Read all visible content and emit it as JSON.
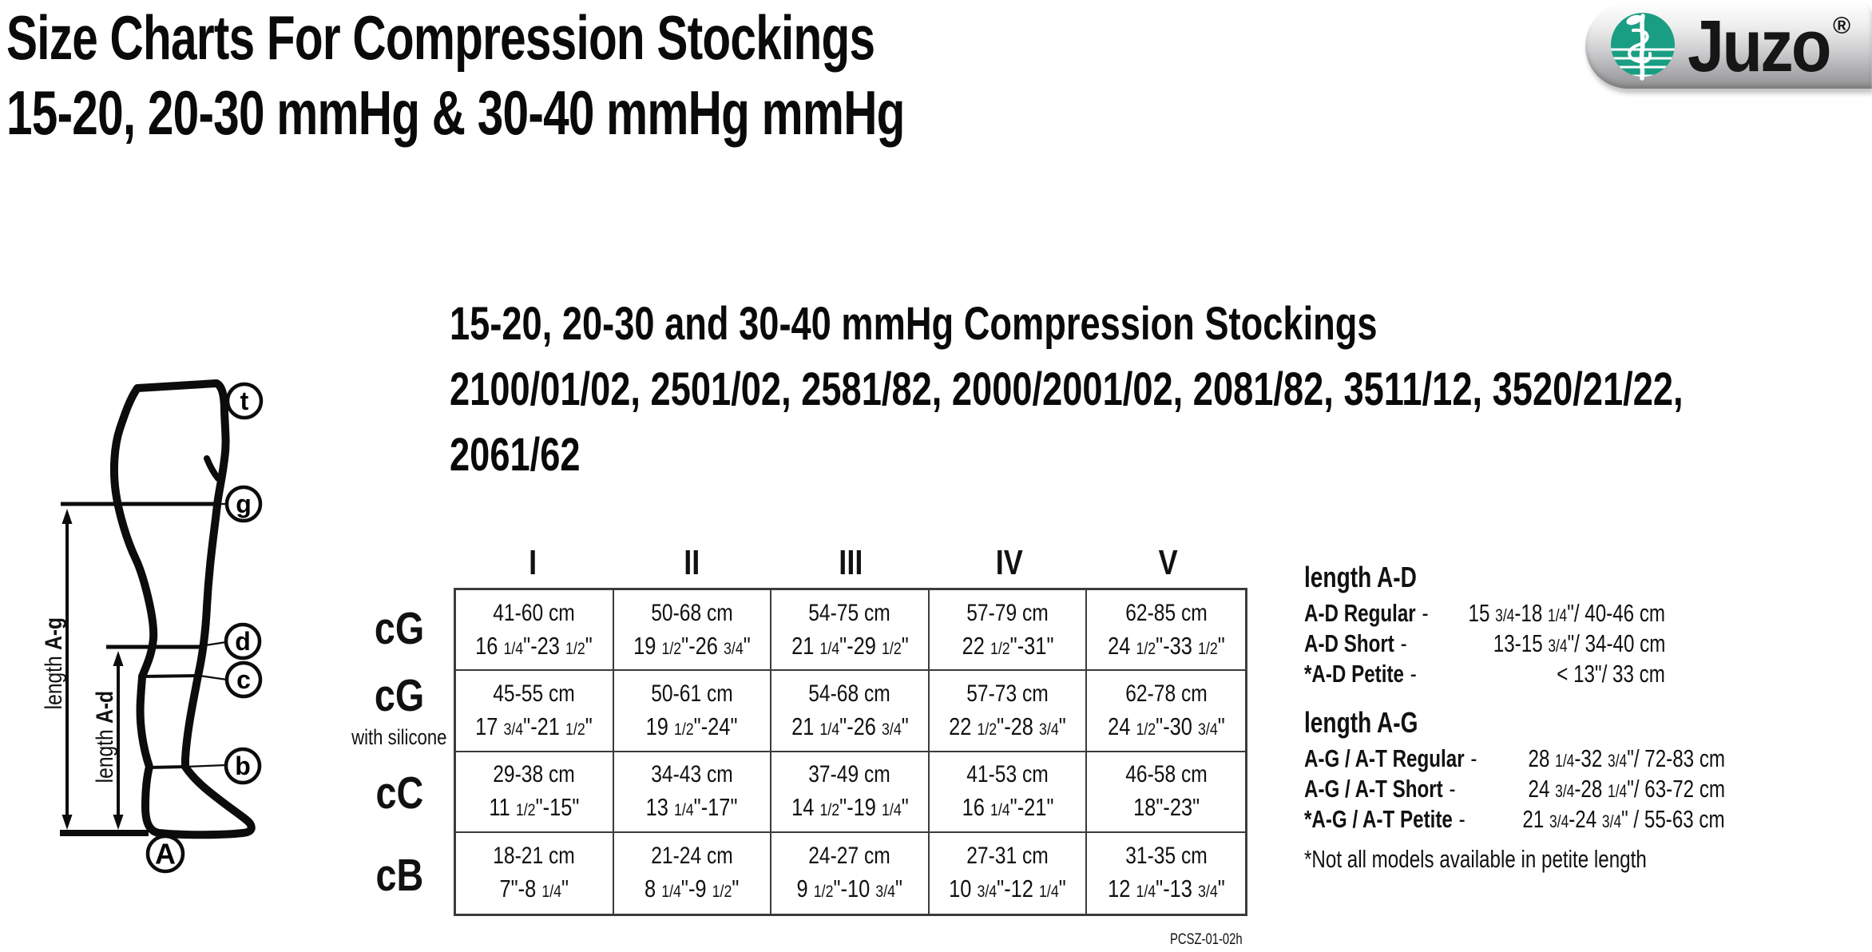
{
  "page": {
    "title_line1": "Size Charts For Compression Stockings",
    "title_line2": "15-20, 20-30 mmHg & 30-40 mmHg mmHg",
    "doc_code": "PCSZ-01-02h"
  },
  "logo": {
    "brand": "Juzo",
    "registered": "®",
    "icon": "rod-of-asclepius-icon",
    "green": "#1A9E83"
  },
  "diagram": {
    "point_labels": [
      "t",
      "g",
      "d",
      "c",
      "b",
      "A"
    ],
    "length_ag_prefix": "length",
    "length_ag_bold": "A-g",
    "length_ad_prefix": "length",
    "length_ad_bold": "A-d"
  },
  "section": {
    "heading": "15-20, 20-30 and 30-40 mmHg Compression Stockings",
    "models_line1": "2100/01/02, 2501/02, 2581/82, 2000/2001/02, 2081/82, 3511/12, 3520/21/22,",
    "models_line2": "2061/62"
  },
  "size_table": {
    "columns": [
      "I",
      "II",
      "III",
      "IV",
      "V"
    ],
    "rows": [
      {
        "label": "cG",
        "sublabel": "",
        "cells": [
          {
            "cm": "41-60 cm",
            "inch": "16 1/4\"-23 1/2\""
          },
          {
            "cm": "50-68 cm",
            "inch": "19 1/2\"-26 3/4\""
          },
          {
            "cm": "54-75 cm",
            "inch": "21 1/4\"-29 1/2\""
          },
          {
            "cm": "57-79 cm",
            "inch": "22 1/2\"-31\""
          },
          {
            "cm": "62-85 cm",
            "inch": "24 1/2\"-33 1/2\""
          }
        ]
      },
      {
        "label": "cG",
        "sublabel": "with silicone",
        "cells": [
          {
            "cm": "45-55 cm",
            "inch": "17 3/4\"-21 1/2\""
          },
          {
            "cm": "50-61 cm",
            "inch": "19 1/2\"-24\""
          },
          {
            "cm": "54-68 cm",
            "inch": "21 1/4\"-26 3/4\""
          },
          {
            "cm": "57-73 cm",
            "inch": "22 1/2\"-28 3/4\""
          },
          {
            "cm": "62-78 cm",
            "inch": "24 1/2\"-30 3/4\""
          }
        ]
      },
      {
        "label": "cC",
        "sublabel": "",
        "cells": [
          {
            "cm": "29-38 cm",
            "inch": "11 1/2\"-15\""
          },
          {
            "cm": "34-43 cm",
            "inch": "13 1/4\"-17\""
          },
          {
            "cm": "37-49 cm",
            "inch": "14 1/2\"-19 1/4\""
          },
          {
            "cm": "41-53 cm",
            "inch": "16 1/4\"-21\""
          },
          {
            "cm": "46-58 cm",
            "inch": "18\"-23\""
          }
        ]
      },
      {
        "label": "cB",
        "sublabel": "",
        "cells": [
          {
            "cm": "18-21 cm",
            "inch": "7\"-8 1/4\""
          },
          {
            "cm": "21-24 cm",
            "inch": "8 1/4\"-9 1/2\""
          },
          {
            "cm": "24-27 cm",
            "inch": "9 1/2\"-10 3/4\""
          },
          {
            "cm": "27-31 cm",
            "inch": "10 3/4\"-12 1/4\""
          },
          {
            "cm": "31-35 cm",
            "inch": "12 1/4\"-13 3/4\""
          }
        ]
      }
    ]
  },
  "length_ad": {
    "heading": "length A-D",
    "items": [
      {
        "name": "A-D Regular",
        "dash": "-",
        "value": "15 3/4-18 1/4\"/ 40-46 cm"
      },
      {
        "name": "A-D Short",
        "dash": "-",
        "value": "13-15 3/4\"/ 34-40 cm"
      },
      {
        "name": "*A-D Petite",
        "dash": "-",
        "value": "< 13\"/ 33 cm"
      }
    ]
  },
  "length_ag": {
    "heading": "length A-G",
    "items": [
      {
        "name": "A-G / A-T Regular",
        "dash": "-",
        "value": "28 1/4-32 3/4\"/ 72-83 cm"
      },
      {
        "name": "A-G / A-T Short",
        "dash": "-",
        "value": "24 3/4-28 1/4\"/ 63-72 cm"
      },
      {
        "name": "*A-G / A-T Petite",
        "dash": "-",
        "value": "21 3/4-24 3/4\" / 55-63 cm"
      }
    ]
  },
  "note": "*Not all models available in petite length"
}
